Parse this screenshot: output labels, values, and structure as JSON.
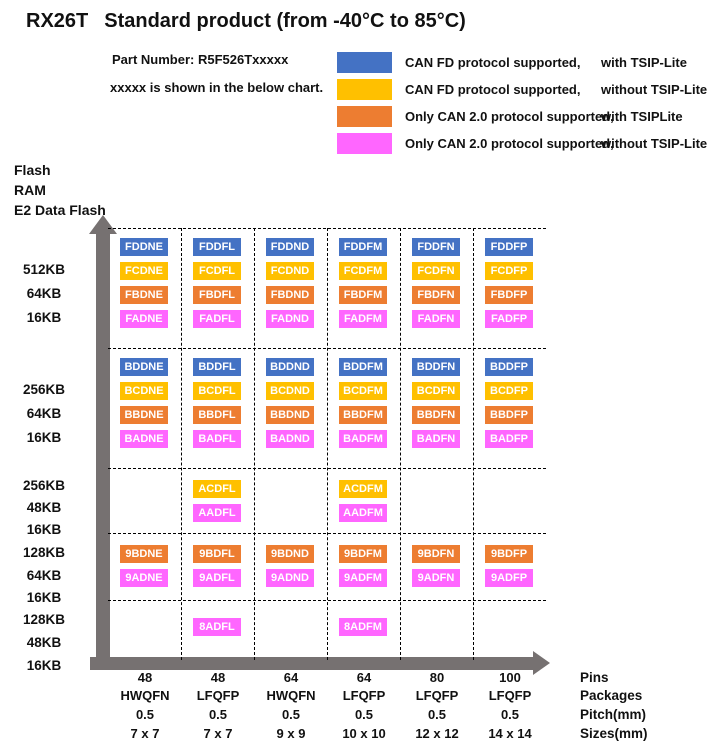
{
  "header": {
    "title_model": "RX26T",
    "title_rest": "Standard product (from -40°C to 85°C)",
    "part_number": "Part Number: R5F526Txxxxx",
    "note": "xxxxx is shown in the below chart."
  },
  "colors": {
    "blue": "#4472C4",
    "gold": "#FFC000",
    "orange": "#ED7D31",
    "magenta": "#FF66FF",
    "axis_gray": "#767171"
  },
  "legend": {
    "items": [
      {
        "color": "blue",
        "text1": "CAN FD protocol supported,",
        "text2": "with TSIP-Lite"
      },
      {
        "color": "gold",
        "text1": "CAN FD protocol supported,",
        "text2": "without TSIP-Lite"
      },
      {
        "color": "orange",
        "text1": "Only CAN 2.0 protocol supported,",
        "text2": "with TSIPLite"
      },
      {
        "color": "magenta",
        "text1": "Only CAN 2.0 protocol supported,",
        "text2": "without TSIP-Lite"
      }
    ]
  },
  "y_axis": {
    "title_lines": [
      "Flash",
      "RAM",
      "E2 Data Flash"
    ]
  },
  "grid": {
    "row_groups": [
      {
        "memory": [
          "512KB",
          "64KB",
          "16KB"
        ],
        "chip_rows": [
          {
            "color": "blue",
            "parts": [
              "FDDNE",
              "FDDFL",
              "FDDND",
              "FDDFM",
              "FDDFN",
              "FDDFP"
            ]
          },
          {
            "color": "gold",
            "parts": [
              "FCDNE",
              "FCDFL",
              "FCDND",
              "FCDFM",
              "FCDFN",
              "FCDFP"
            ]
          },
          {
            "color": "orange",
            "parts": [
              "FBDNE",
              "FBDFL",
              "FBDND",
              "FBDFM",
              "FBDFN",
              "FBDFP"
            ]
          },
          {
            "color": "magenta",
            "parts": [
              "FADNE",
              "FADFL",
              "FADND",
              "FADFM",
              "FADFN",
              "FADFP"
            ]
          }
        ]
      },
      {
        "memory": [
          "256KB",
          "64KB",
          "16KB"
        ],
        "chip_rows": [
          {
            "color": "blue",
            "parts": [
              "BDDNE",
              "BDDFL",
              "BDDND",
              "BDDFM",
              "BDDFN",
              "BDDFP"
            ]
          },
          {
            "color": "gold",
            "parts": [
              "BCDNE",
              "BCDFL",
              "BCDND",
              "BCDFM",
              "BCDFN",
              "BCDFP"
            ]
          },
          {
            "color": "orange",
            "parts": [
              "BBDNE",
              "BBDFL",
              "BBDND",
              "BBDFM",
              "BBDFN",
              "BBDFP"
            ]
          },
          {
            "color": "magenta",
            "parts": [
              "BADNE",
              "BADFL",
              "BADND",
              "BADFM",
              "BADFN",
              "BADFP"
            ]
          }
        ]
      },
      {
        "memory": [
          "256KB",
          "48KB",
          "16KB"
        ],
        "chip_rows": [
          {
            "color": "gold",
            "parts": [
              "",
              "ACDFL",
              "",
              "ACDFM",
              "",
              ""
            ]
          },
          {
            "color": "magenta",
            "parts": [
              "",
              "AADFL",
              "",
              "AADFM",
              "",
              ""
            ]
          }
        ]
      },
      {
        "memory": [
          "128KB",
          "64KB",
          "16KB"
        ],
        "chip_rows": [
          {
            "color": "orange",
            "parts": [
              "9BDNE",
              "9BDFL",
              "9BDND",
              "9BDFM",
              "9BDFN",
              "9BDFP"
            ]
          },
          {
            "color": "magenta",
            "parts": [
              "9ADNE",
              "9ADFL",
              "9ADND",
              "9ADFM",
              "9ADFN",
              "9ADFP"
            ]
          }
        ]
      },
      {
        "memory": [
          "128KB",
          "48KB",
          "16KB"
        ],
        "chip_rows": [
          {
            "color": "magenta",
            "parts": [
              "",
              "8ADFL",
              "",
              "8ADFM",
              "",
              ""
            ]
          }
        ]
      }
    ]
  },
  "x_axis": {
    "row_labels": [
      "Pins",
      "Packages",
      "Pitch(mm)",
      "Sizes(mm)"
    ],
    "pins": [
      "48",
      "48",
      "64",
      "64",
      "80",
      "100"
    ],
    "packages": [
      "HWQFN",
      "LFQFP",
      "HWQFN",
      "LFQFP",
      "LFQFP",
      "LFQFP"
    ],
    "pitch": [
      "0.5",
      "0.5",
      "0.5",
      "0.5",
      "0.5",
      "0.5"
    ],
    "sizes": [
      "7 x 7",
      "7 x 7",
      "9 x 9",
      "10 x 10",
      "12 x 12",
      "14 x 14"
    ]
  }
}
